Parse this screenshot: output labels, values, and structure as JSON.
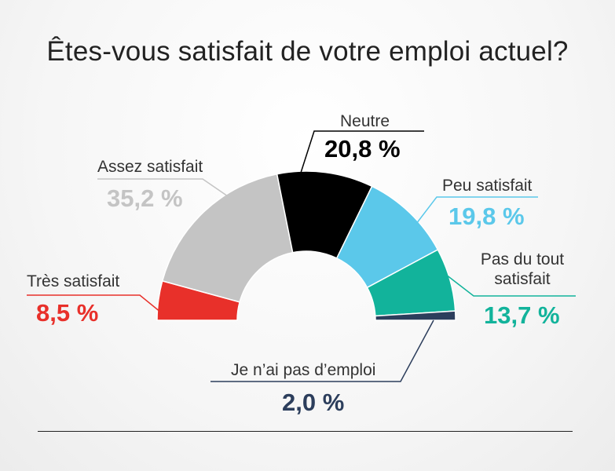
{
  "title": "Êtes-vous satisfait de votre emploi actuel?",
  "chart_data": {
    "type": "pie",
    "variant": "half-donut",
    "title": "Êtes-vous satisfait de votre emploi actuel?",
    "slices": [
      {
        "label": "Très satisfait",
        "value_text": "8,5 %",
        "value": 8.5,
        "color": "#e8302a"
      },
      {
        "label": "Assez satisfait",
        "value_text": "35,2 %",
        "value": 35.2,
        "color": "#c4c4c4"
      },
      {
        "label": "Neutre",
        "value_text": "20,8 %",
        "value": 20.8,
        "color": "#000000"
      },
      {
        "label": "Peu satisfait",
        "value_text": "19,8 %",
        "value": 19.8,
        "color": "#5bc8ea"
      },
      {
        "label": "Pas du tout satisfait",
        "value_text": "13,7 %",
        "value": 13.7,
        "color": "#12b39b"
      },
      {
        "label": "Je n’ai pas d’emploi",
        "value_text": "2,0 %",
        "value": 2.0,
        "color": "#2c3e5c"
      }
    ]
  }
}
